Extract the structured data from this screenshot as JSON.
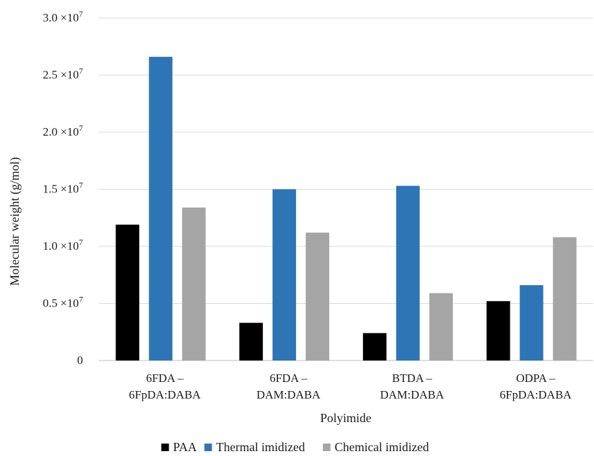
{
  "chart_data": {
    "type": "bar",
    "categories": [
      [
        "6FDA –",
        "6FpDA:DABA"
      ],
      [
        "6FDA –",
        "DAM:DABA"
      ],
      [
        "BTDA –",
        "DAM:DABA"
      ],
      [
        "ODPA –",
        "6FpDA:DABA"
      ]
    ],
    "series": [
      {
        "name": "PAA",
        "color": "#000000",
        "values": [
          11900000,
          3300000,
          2400000,
          5200000
        ]
      },
      {
        "name": "Thermal imidized",
        "color": "#2e75b6",
        "values": [
          26600000,
          15000000,
          15300000,
          6600000
        ]
      },
      {
        "name": "Chemical imidized",
        "color": "#a5a5a5",
        "values": [
          13400000,
          11200000,
          5900000,
          10800000
        ]
      }
    ],
    "y_ticks": [
      {
        "value": 0,
        "label": "0"
      },
      {
        "value": 5000000,
        "label": "0.5 ×10",
        "exp": "7"
      },
      {
        "value": 10000000,
        "label": "1.0 ×10",
        "exp": "7"
      },
      {
        "value": 15000000,
        "label": "1.5 ×10",
        "exp": "7"
      },
      {
        "value": 20000000,
        "label": "2.0 ×10",
        "exp": "7"
      },
      {
        "value": 25000000,
        "label": "2.5 ×10",
        "exp": "7"
      },
      {
        "value": 30000000,
        "label": "3.0 ×10",
        "exp": "7"
      }
    ],
    "xlabel": "Polyimide",
    "ylabel": "Molecular weight (g/mol)",
    "ylim": [
      0,
      30000000
    ],
    "grid": true,
    "legend_position": "bottom",
    "colors": {
      "grid": "#d9d9d9",
      "axis": "#bfbfbf"
    }
  }
}
